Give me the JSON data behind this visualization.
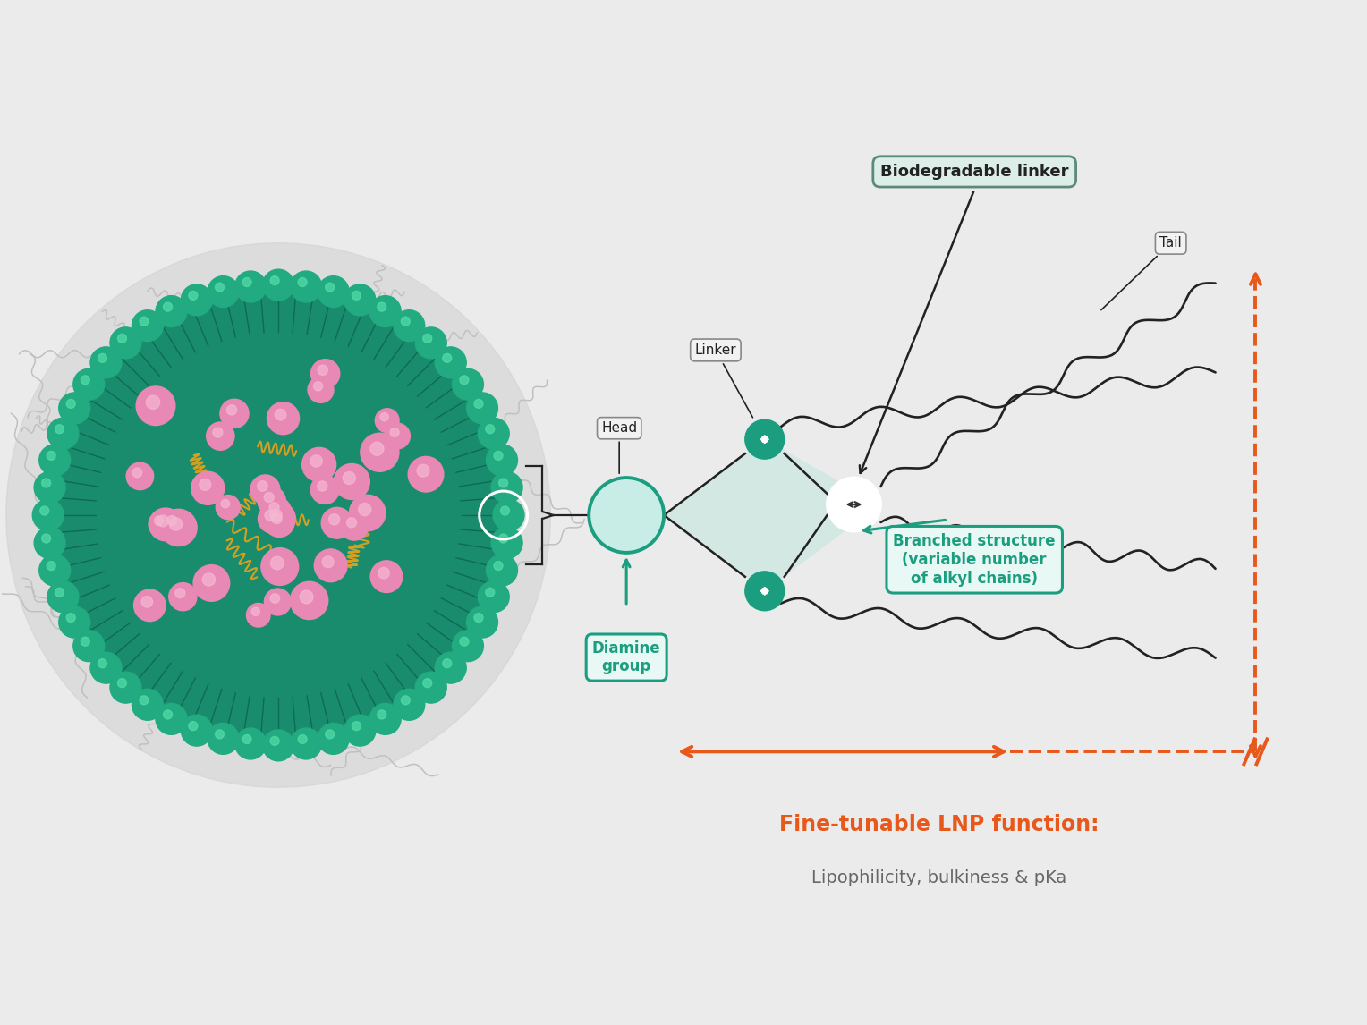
{
  "bg_color": "#ebebeb",
  "teal_color": "#1a9e7f",
  "teal_light": "#c8ede6",
  "teal_fill": "#d4ede8",
  "orange_color": "#e8581a",
  "dark_color": "#222222",
  "gray_color": "#666666",
  "box_border_color": "#888888",
  "box_bg": "#f5f5f5",
  "teal_box_border": "#1a9e7f",
  "teal_box_bg": "#e8f8f4",
  "biodeg_box_border": "#5a8a7a",
  "biodeg_box_bg": "#ddeee9",
  "labels": {
    "biodegradable": "Biodegradable linker",
    "tail": "Tail",
    "linker": "Linker",
    "head": "Head",
    "diamine": "Diamine\ngroup",
    "branched": "Branched structure\n(variable number\nof alkyl chains)",
    "fine_tunable_bold": "Fine-tunable LNP function:",
    "fine_tunable_sub": "Lipophilicity, bulkiness & pKa"
  }
}
